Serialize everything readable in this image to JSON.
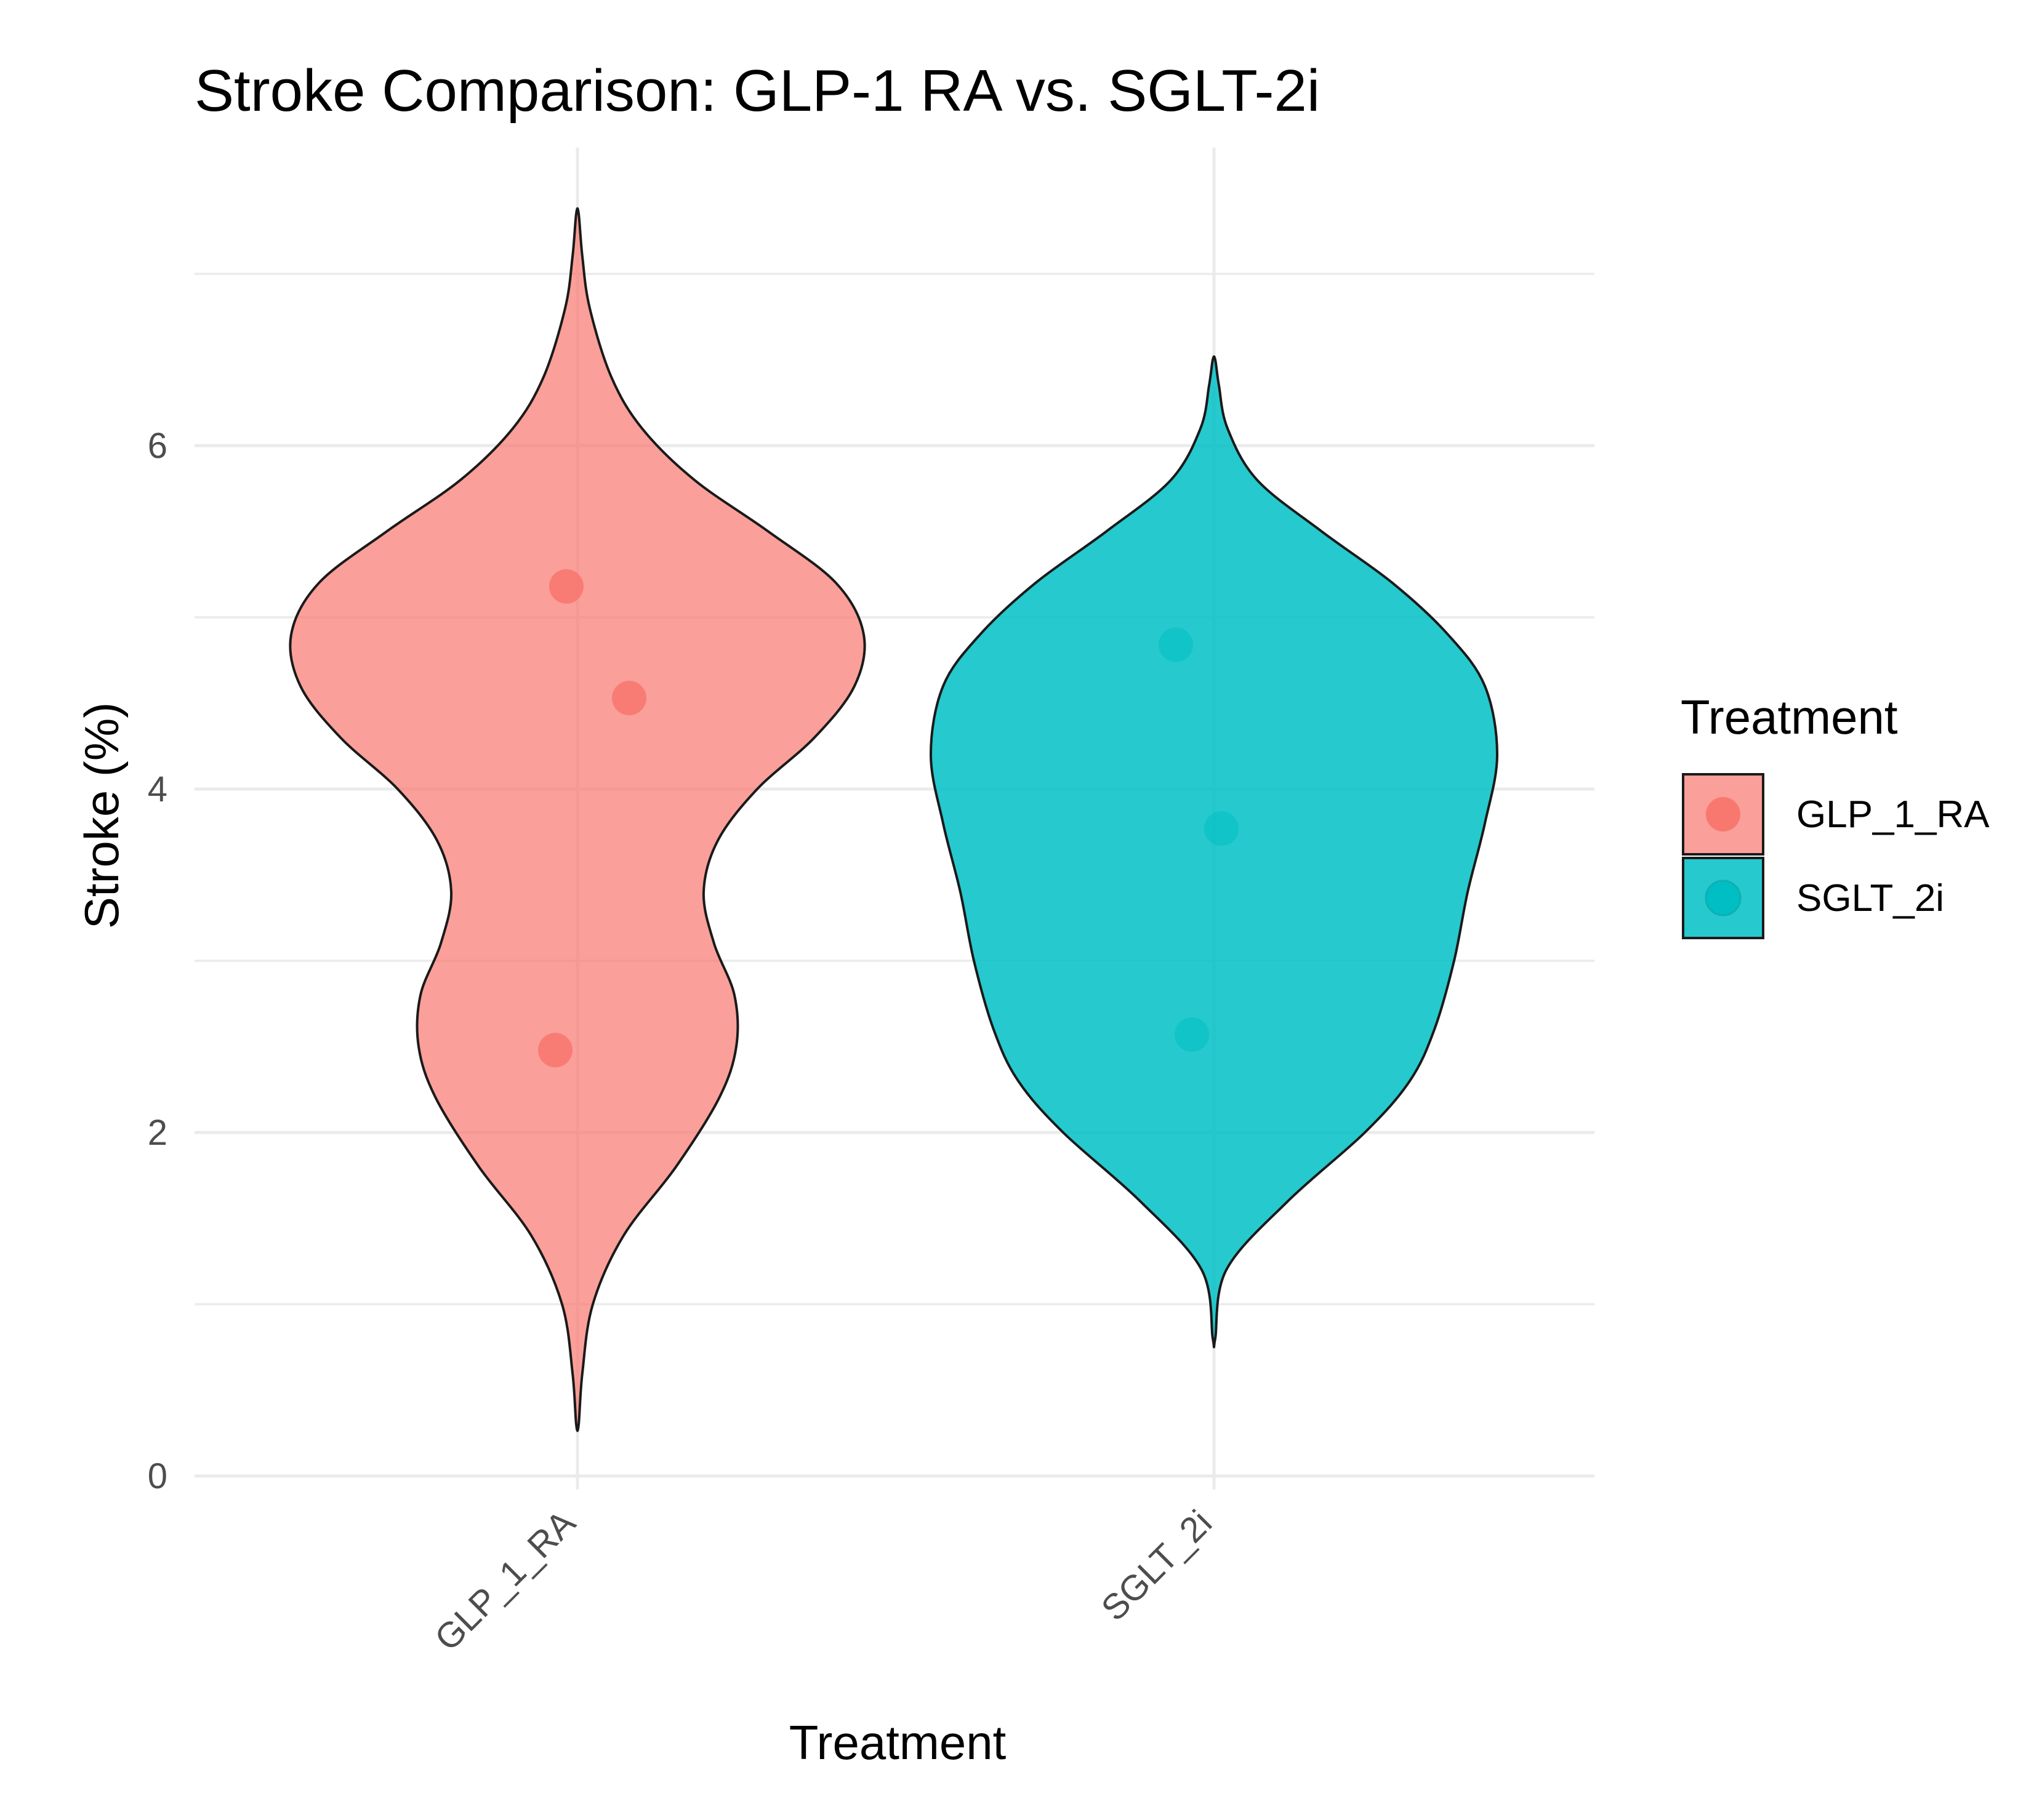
{
  "chart_data": {
    "type": "violin",
    "title": "Stroke Comparison: GLP-1 RA vs. SGLT-2i",
    "xlabel": "Treatment",
    "ylabel": "Stroke (%)",
    "categories": [
      "GLP_1_RA",
      "SGLT_2i"
    ],
    "ylim": [
      -0.1,
      7.7
    ],
    "y_ticks": [
      0,
      2,
      4,
      6
    ],
    "y_minor_gridlines": [
      1,
      3,
      5,
      7
    ],
    "series": [
      {
        "name": "GLP_1_RA",
        "color": "#f8766d",
        "fill_opacity": 0.7,
        "points": [
          5.18,
          4.53,
          2.48
        ],
        "range": [
          0.3,
          7.35
        ],
        "modes": [
          4.9,
          2.55
        ]
      },
      {
        "name": "SGLT_2i",
        "color": "#00bfc4",
        "fill_opacity": 0.85,
        "points": [
          4.84,
          3.77,
          2.57
        ],
        "range": [
          0.8,
          6.5
        ],
        "modes": [
          4.2
        ]
      }
    ],
    "legend": {
      "title": "Treatment",
      "position": "right",
      "entries": [
        "GLP_1_RA",
        "SGLT_2i"
      ]
    },
    "grid": true
  }
}
